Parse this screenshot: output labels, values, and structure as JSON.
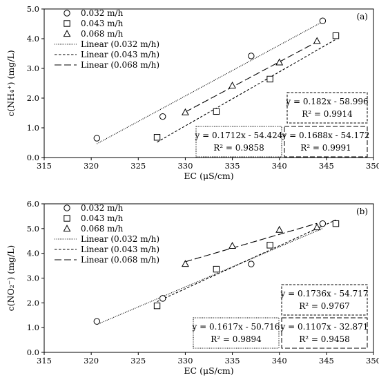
{
  "chart_data": [
    {
      "type": "scatter",
      "panel_label": "(a)",
      "xlabel": "EC (μS/cm)",
      "ylabel": "c(NH₄⁺) (mg/L)",
      "xlim": [
        315,
        350
      ],
      "ylim": [
        0.0,
        5.0
      ],
      "xticks": [
        "315",
        "320",
        "325",
        "330",
        "335",
        "340",
        "345",
        "350"
      ],
      "yticks": [
        "0.0",
        "1.0",
        "2.0",
        "3.0",
        "4.0",
        "5.0"
      ],
      "legend_position": "top-left",
      "series": [
        {
          "name": "0.032 m/h",
          "marker": "circle",
          "x": [
            320.6,
            327.6,
            337.0,
            344.6
          ],
          "y": [
            0.65,
            1.38,
            3.42,
            4.6
          ]
        },
        {
          "name": "0.043 m/h",
          "marker": "square",
          "x": [
            327.0,
            333.3,
            339.0,
            346.0
          ],
          "y": [
            0.68,
            1.55,
            2.64,
            4.1
          ]
        },
        {
          "name": "0.068 m/h",
          "marker": "triangle",
          "x": [
            330.0,
            335.0,
            340.0,
            344.0
          ],
          "y": [
            1.52,
            2.42,
            3.2,
            3.92
          ]
        }
      ],
      "fits": [
        {
          "name": "Linear (0.032 m/h)",
          "dash": "dotted",
          "slope": 0.1712,
          "intercept": -54.424,
          "x_range": [
            320.6,
            344.6
          ],
          "equation": "y = 0.1712x - 54.424",
          "r2": "R² = 0.9858"
        },
        {
          "name": "Linear (0.043 m/h)",
          "dash": "short",
          "slope": 0.182,
          "intercept": -58.996,
          "x_range": [
            327.0,
            346.0
          ],
          "equation": "y = 0.182x - 58.996",
          "r2": "R² = 0.9914"
        },
        {
          "name": "Linear (0.068 m/h)",
          "dash": "long",
          "slope": 0.1688,
          "intercept": -54.172,
          "x_range": [
            330.0,
            344.0
          ],
          "equation": "y = 0.1688x - 54.172",
          "r2": "R² = 0.9991"
        }
      ]
    },
    {
      "type": "scatter",
      "panel_label": "(b)",
      "xlabel": "EC (μS/cm)",
      "ylabel": "c(NO₂⁻) (mg/L)",
      "xlim": [
        315,
        350
      ],
      "ylim": [
        0.0,
        6.0
      ],
      "xticks": [
        "315",
        "320",
        "325",
        "330",
        "335",
        "340",
        "345",
        "350"
      ],
      "yticks": [
        "0.0",
        "1.0",
        "2.0",
        "3.0",
        "4.0",
        "5.0",
        "6.0"
      ],
      "legend_position": "top-left",
      "series": [
        {
          "name": "0.032 m/h",
          "marker": "circle",
          "x": [
            320.6,
            327.6,
            337.0,
            344.6
          ],
          "y": [
            1.25,
            2.18,
            3.57,
            5.2
          ]
        },
        {
          "name": "0.043 m/h",
          "marker": "square",
          "x": [
            327.0,
            333.3,
            339.0,
            346.0
          ],
          "y": [
            1.88,
            3.36,
            4.33,
            5.2
          ]
        },
        {
          "name": "0.068 m/h",
          "marker": "triangle",
          "x": [
            330.0,
            335.0,
            340.0,
            344.0
          ],
          "y": [
            3.57,
            4.3,
            4.95,
            5.05
          ]
        }
      ],
      "fits": [
        {
          "name": "Linear (0.032 m/h)",
          "dash": "dotted",
          "slope": 0.1617,
          "intercept": -50.716,
          "x_range": [
            320.6,
            344.6
          ],
          "equation": "y = 0.1617x - 50.716",
          "r2": "R² = 0.9894"
        },
        {
          "name": "Linear (0.043 m/h)",
          "dash": "short",
          "slope": 0.1736,
          "intercept": -54.717,
          "x_range": [
            327.0,
            346.0
          ],
          "equation": "y = 0.1736x - 54.717",
          "r2": "R² = 0.9767"
        },
        {
          "name": "Linear (0.068 m/h)",
          "dash": "long",
          "slope": 0.1107,
          "intercept": -32.871,
          "x_range": [
            330.0,
            344.0
          ],
          "equation": "y = 0.1107x - 32.871",
          "r2": "R² = 0.9458"
        }
      ]
    }
  ]
}
